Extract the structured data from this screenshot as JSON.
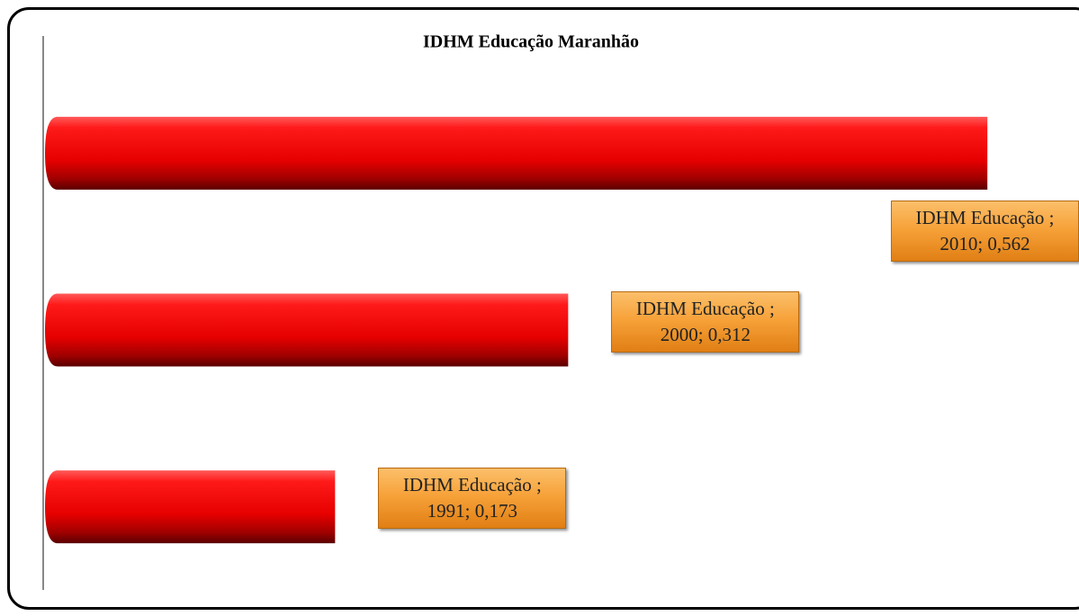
{
  "chart_data": {
    "type": "bar",
    "orientation": "horizontal",
    "title": "IDHM Educação Maranhão",
    "values": [
      0.562,
      0.312,
      0.173
    ],
    "value_labels": [
      "IDHM Educação ;\n2010; 0,562",
      "IDHM Educação ;\n2000; 0,312",
      "IDHM Educação ;\n1991; 0,173"
    ],
    "color": "#ff0000",
    "label_color": "#f7a23a",
    "xlim": [
      0,
      0.6
    ]
  }
}
